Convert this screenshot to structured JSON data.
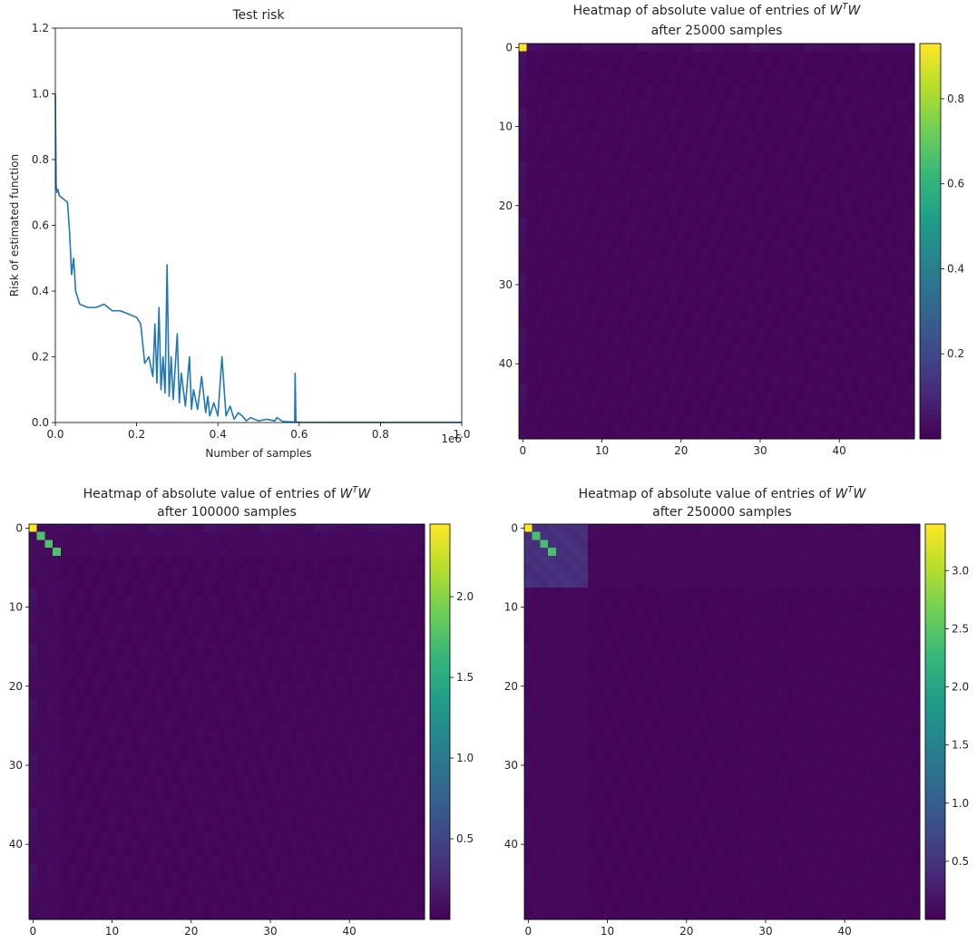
{
  "chart_data": [
    {
      "type": "line",
      "title": "Test risk",
      "xlabel": "Number of samples",
      "ylabel": "Risk of estimated function",
      "x_offset_text": "1e6",
      "xlim": [
        0,
        1.0
      ],
      "ylim": [
        0,
        1.2
      ],
      "x_tick_labels": [
        "0.0",
        "0.2",
        "0.4",
        "0.6",
        "0.8",
        "1.0"
      ],
      "y_tick_labels": [
        "0.0",
        "0.2",
        "0.4",
        "0.6",
        "0.8",
        "1.0",
        "1.2"
      ],
      "line_color": "#1f77b4",
      "series": [
        {
          "x": [
            0,
            0.002,
            0.004,
            0.006,
            0.01,
            0.02,
            0.03,
            0.035,
            0.04,
            0.045,
            0.05,
            0.055,
            0.06,
            0.08,
            0.1,
            0.12,
            0.14,
            0.16,
            0.18,
            0.2,
            0.21,
            0.22,
            0.23,
            0.24,
            0.245,
            0.25,
            0.255,
            0.26,
            0.265,
            0.27,
            0.275,
            0.28,
            0.285,
            0.29,
            0.3,
            0.305,
            0.31,
            0.32,
            0.33,
            0.335,
            0.34,
            0.35,
            0.36,
            0.37,
            0.375,
            0.38,
            0.39,
            0.4,
            0.41,
            0.42,
            0.43,
            0.44,
            0.45,
            0.46,
            0.47,
            0.48,
            0.5,
            0.52,
            0.54,
            0.545,
            0.56,
            0.58,
            0.589,
            0.59,
            0.592,
            0.6,
            0.7,
            0.8,
            0.9,
            1.0
          ],
          "y": [
            1.0,
            0.72,
            0.7,
            0.71,
            0.69,
            0.68,
            0.67,
            0.58,
            0.45,
            0.5,
            0.4,
            0.38,
            0.36,
            0.35,
            0.35,
            0.36,
            0.34,
            0.34,
            0.33,
            0.32,
            0.3,
            0.18,
            0.2,
            0.14,
            0.3,
            0.12,
            0.35,
            0.1,
            0.2,
            0.09,
            0.48,
            0.08,
            0.2,
            0.07,
            0.27,
            0.06,
            0.15,
            0.05,
            0.2,
            0.04,
            0.1,
            0.04,
            0.14,
            0.03,
            0.08,
            0.02,
            0.06,
            0.02,
            0.2,
            0.02,
            0.05,
            0.01,
            0.03,
            0.02,
            0.005,
            0.015,
            0.005,
            0.01,
            0.005,
            0.015,
            0.003,
            0.002,
            0.001,
            0.15,
            0.002,
            0.001,
            0.0005,
            0.0005,
            0.0005,
            0.0005
          ]
        }
      ]
    },
    {
      "type": "heatmap",
      "title_line1_prefix": "Heatmap of absolute value of entries of ",
      "title_math_W": "W",
      "title_math_T": "T",
      "title_line2": "after 25000 samples",
      "size": 50,
      "x_tick_labels": [
        "0",
        "10",
        "20",
        "30",
        "40"
      ],
      "y_tick_labels": [
        "0",
        "10",
        "20",
        "30",
        "40"
      ],
      "colorbar_ticks": [
        "0.2",
        "0.4",
        "0.6",
        "0.8"
      ],
      "colorbar_tick_values": [
        0.2,
        0.4,
        0.6,
        0.8
      ],
      "vmin": 0.0,
      "vmax": 0.93,
      "diagonal": [
        0.93
      ],
      "block_size": 0,
      "block_value": 0.0,
      "edge_value": 0.035,
      "background": 0.015
    },
    {
      "type": "heatmap",
      "title_line1_prefix": "Heatmap of absolute value of entries of ",
      "title_math_W": "W",
      "title_math_T": "T",
      "title_line2": "after 100000 samples",
      "size": 50,
      "x_tick_labels": [
        "0",
        "10",
        "20",
        "30",
        "40"
      ],
      "y_tick_labels": [
        "0",
        "10",
        "20",
        "30",
        "40"
      ],
      "colorbar_ticks": [
        "0.5",
        "1.0",
        "1.5",
        "2.0"
      ],
      "colorbar_tick_values": [
        0.5,
        1.0,
        1.5,
        2.0
      ],
      "vmin": 0.0,
      "vmax": 2.45,
      "diagonal": [
        2.45,
        1.75,
        1.75,
        1.75
      ],
      "block_size": 4,
      "block_value": 0.08,
      "edge_value": 0.09,
      "background": 0.04
    },
    {
      "type": "heatmap",
      "title_line1_prefix": "Heatmap of absolute value of entries of ",
      "title_math_W": "W",
      "title_math_T": "T",
      "title_line2": "after 250000 samples",
      "size": 50,
      "x_tick_labels": [
        "0",
        "10",
        "20",
        "30",
        "40"
      ],
      "y_tick_labels": [
        "0",
        "10",
        "20",
        "30",
        "40"
      ],
      "colorbar_ticks": [
        "0.5",
        "1.0",
        "1.5",
        "2.0",
        "2.5",
        "3.0"
      ],
      "colorbar_tick_values": [
        0.5,
        1.0,
        1.5,
        2.0,
        2.5,
        3.0
      ],
      "vmin": 0.0,
      "vmax": 3.4,
      "diagonal": [
        3.4,
        2.4,
        2.4,
        2.4
      ],
      "block_size": 8,
      "block_value": 0.5,
      "edge_value": 0.08,
      "background": 0.05
    }
  ]
}
